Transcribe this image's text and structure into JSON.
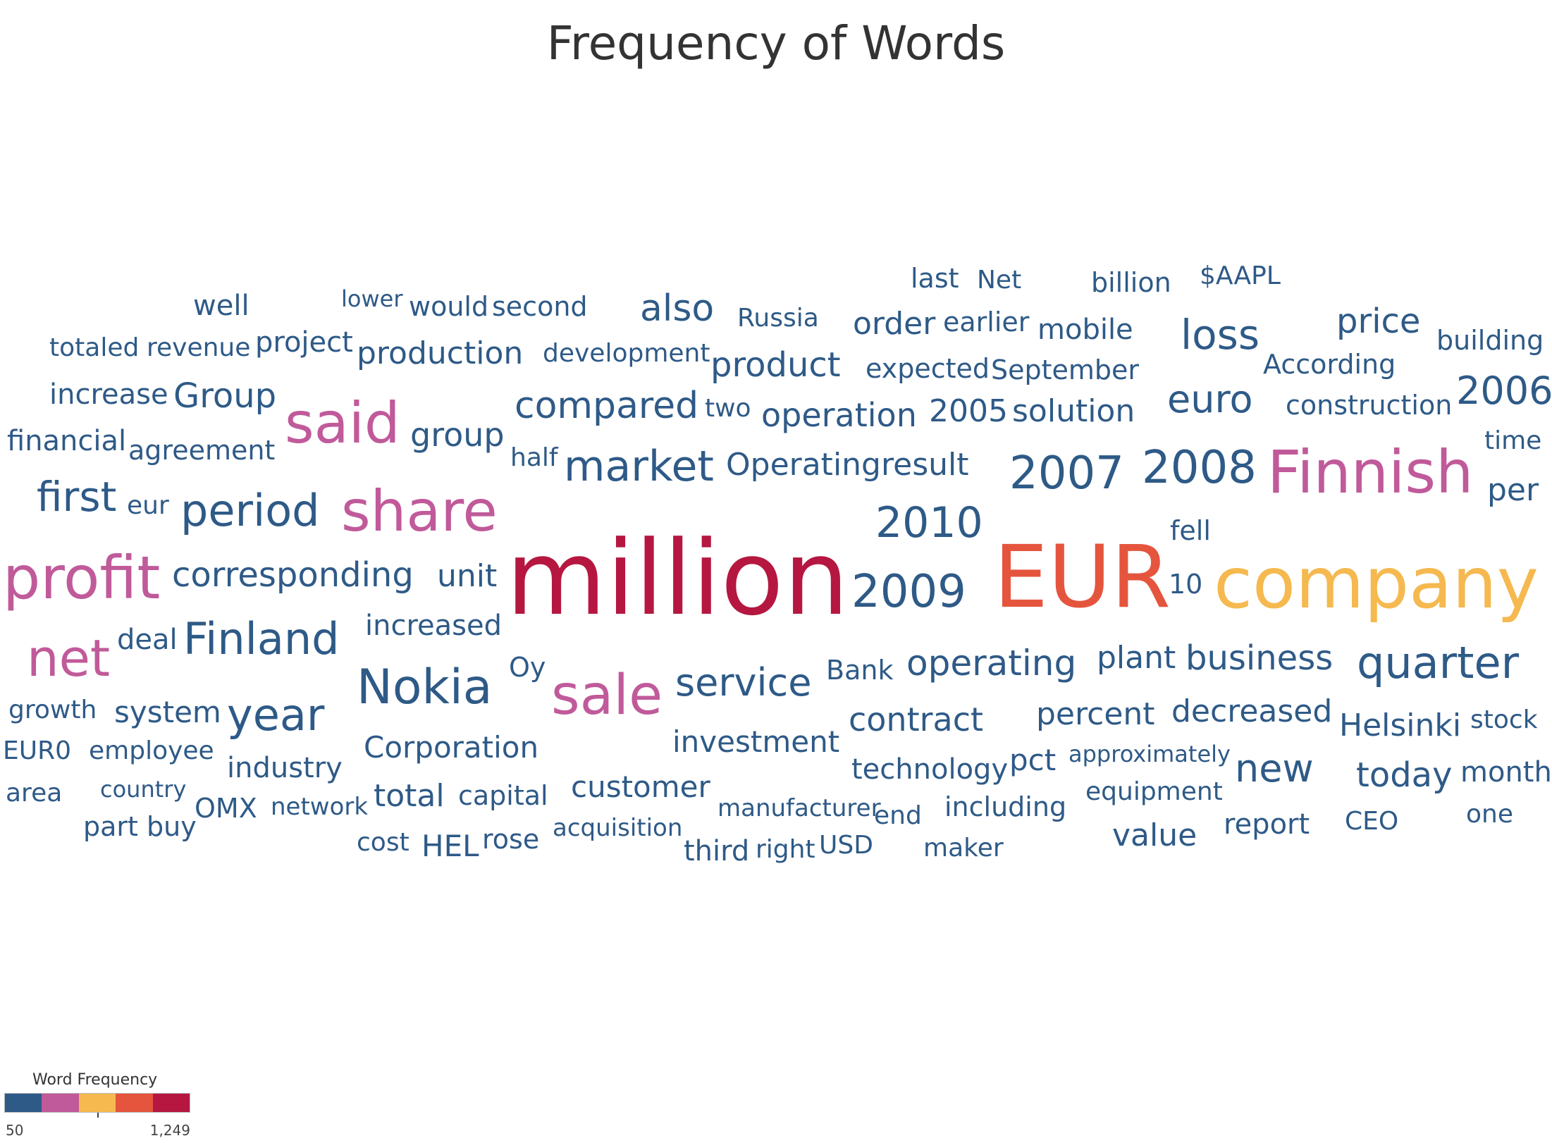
{
  "chart_data": {
    "type": "word-cloud",
    "title": "Frequency of Words",
    "legend": {
      "title": "Word Frequency",
      "min_label": "50",
      "max_label": "1,249",
      "palette": [
        "#2e5a87",
        "#c05a9a",
        "#f5b94f",
        "#e5553e",
        "#b51740"
      ]
    },
    "words": [
      {
        "text": "million",
        "color": "#b51740"
      },
      {
        "text": "EUR",
        "color": "#e5553e"
      },
      {
        "text": "company",
        "color": "#f5b94f"
      },
      {
        "text": "profit",
        "color": "#c05a9a"
      },
      {
        "text": "share",
        "color": "#c05a9a"
      },
      {
        "text": "Finnish",
        "color": "#c05a9a"
      },
      {
        "text": "said",
        "color": "#c05a9a"
      },
      {
        "text": "sale",
        "color": "#c05a9a"
      },
      {
        "text": "net",
        "color": "#c05a9a"
      },
      {
        "text": "2009",
        "color": "#2e5a87"
      },
      {
        "text": "2007",
        "color": "#2e5a87"
      },
      {
        "text": "2008",
        "color": "#2e5a87"
      },
      {
        "text": "2010",
        "color": "#2e5a87"
      },
      {
        "text": "Nokia",
        "color": "#2e5a87"
      },
      {
        "text": "market",
        "color": "#2e5a87"
      },
      {
        "text": "quarter",
        "color": "#2e5a87"
      },
      {
        "text": "period",
        "color": "#2e5a87"
      },
      {
        "text": "year",
        "color": "#2e5a87"
      },
      {
        "text": "Finland",
        "color": "#2e5a87"
      },
      {
        "text": "first",
        "color": "#2e5a87"
      },
      {
        "text": "service",
        "color": "#2e5a87"
      },
      {
        "text": "corresponding",
        "color": "#2e5a87"
      },
      {
        "text": "loss",
        "color": "#2e5a87"
      },
      {
        "text": "euro",
        "color": "#2e5a87"
      },
      {
        "text": "compared",
        "color": "#2e5a87"
      },
      {
        "text": "operating",
        "color": "#2e5a87"
      },
      {
        "text": "also",
        "color": "#2e5a87"
      },
      {
        "text": "2006",
        "color": "#2e5a87"
      },
      {
        "text": "business",
        "color": "#2e5a87"
      },
      {
        "text": "new",
        "color": "#2e5a87"
      },
      {
        "text": "Group",
        "color": "#2e5a87"
      },
      {
        "text": "price",
        "color": "#2e5a87"
      },
      {
        "text": "product",
        "color": "#2e5a87"
      },
      {
        "text": "today",
        "color": "#2e5a87"
      },
      {
        "text": "operation",
        "color": "#2e5a87"
      },
      {
        "text": "group",
        "color": "#2e5a87"
      },
      {
        "text": "production",
        "color": "#2e5a87"
      },
      {
        "text": "Operating",
        "color": "#2e5a87"
      },
      {
        "text": "result",
        "color": "#2e5a87"
      },
      {
        "text": "solution",
        "color": "#2e5a87"
      },
      {
        "text": "contract",
        "color": "#2e5a87"
      },
      {
        "text": "Helsinki",
        "color": "#2e5a87"
      },
      {
        "text": "decreased",
        "color": "#2e5a87"
      },
      {
        "text": "plant",
        "color": "#2e5a87"
      },
      {
        "text": "percent",
        "color": "#2e5a87"
      },
      {
        "text": "2005",
        "color": "#2e5a87"
      },
      {
        "text": "order",
        "color": "#2e5a87"
      },
      {
        "text": "unit",
        "color": "#2e5a87"
      },
      {
        "text": "total",
        "color": "#2e5a87"
      },
      {
        "text": "Corporation",
        "color": "#2e5a87"
      },
      {
        "text": "customer",
        "color": "#2e5a87"
      },
      {
        "text": "investment",
        "color": "#2e5a87"
      },
      {
        "text": "system",
        "color": "#2e5a87"
      },
      {
        "text": "technology",
        "color": "#2e5a87"
      },
      {
        "text": "industry",
        "color": "#2e5a87"
      },
      {
        "text": "increased",
        "color": "#2e5a87"
      },
      {
        "text": "value",
        "color": "#2e5a87"
      },
      {
        "text": "per",
        "color": "#2e5a87"
      },
      {
        "text": "pct",
        "color": "#2e5a87"
      },
      {
        "text": "HEL",
        "color": "#2e5a87"
      },
      {
        "text": "third",
        "color": "#2e5a87"
      },
      {
        "text": "report",
        "color": "#2e5a87"
      },
      {
        "text": "month",
        "color": "#2e5a87"
      },
      {
        "text": "mobile",
        "color": "#2e5a87"
      },
      {
        "text": "project",
        "color": "#2e5a87"
      },
      {
        "text": "deal",
        "color": "#2e5a87"
      },
      {
        "text": "increase",
        "color": "#2e5a87"
      },
      {
        "text": "financial",
        "color": "#2e5a87"
      },
      {
        "text": "agreement",
        "color": "#2e5a87"
      },
      {
        "text": "well",
        "color": "#2e5a87"
      },
      {
        "text": "would",
        "color": "#2e5a87"
      },
      {
        "text": "second",
        "color": "#2e5a87"
      },
      {
        "text": "capital",
        "color": "#2e5a87"
      },
      {
        "text": "Oy",
        "color": "#2e5a87"
      },
      {
        "text": "fell",
        "color": "#2e5a87"
      },
      {
        "text": "10",
        "color": "#2e5a87"
      },
      {
        "text": "Bank",
        "color": "#2e5a87"
      },
      {
        "text": "expected",
        "color": "#2e5a87"
      },
      {
        "text": "September",
        "color": "#2e5a87"
      },
      {
        "text": "earlier",
        "color": "#2e5a87"
      },
      {
        "text": "According",
        "color": "#2e5a87"
      },
      {
        "text": "building",
        "color": "#2e5a87"
      },
      {
        "text": "construction",
        "color": "#2e5a87"
      },
      {
        "text": "billion",
        "color": "#2e5a87"
      },
      {
        "text": "$AAPL",
        "color": "#2e5a87"
      },
      {
        "text": "last",
        "color": "#2e5a87"
      },
      {
        "text": "Net",
        "color": "#2e5a87"
      },
      {
        "text": "Russia",
        "color": "#2e5a87"
      },
      {
        "text": "development",
        "color": "#2e5a87"
      },
      {
        "text": "revenue",
        "color": "#2e5a87"
      },
      {
        "text": "totaled",
        "color": "#2e5a87"
      },
      {
        "text": "lower",
        "color": "#2e5a87"
      },
      {
        "text": "two",
        "color": "#2e5a87"
      },
      {
        "text": "half",
        "color": "#2e5a87"
      },
      {
        "text": "eur",
        "color": "#2e5a87"
      },
      {
        "text": "time",
        "color": "#2e5a87"
      },
      {
        "text": "growth",
        "color": "#2e5a87"
      },
      {
        "text": "EUR0",
        "color": "#2e5a87"
      },
      {
        "text": "employee",
        "color": "#2e5a87"
      },
      {
        "text": "area",
        "color": "#2e5a87"
      },
      {
        "text": "country",
        "color": "#2e5a87"
      },
      {
        "text": "part",
        "color": "#2e5a87"
      },
      {
        "text": "buy",
        "color": "#2e5a87"
      },
      {
        "text": "OMX",
        "color": "#2e5a87"
      },
      {
        "text": "network",
        "color": "#2e5a87"
      },
      {
        "text": "cost",
        "color": "#2e5a87"
      },
      {
        "text": "rose",
        "color": "#2e5a87"
      },
      {
        "text": "acquisition",
        "color": "#2e5a87"
      },
      {
        "text": "right",
        "color": "#2e5a87"
      },
      {
        "text": "USD",
        "color": "#2e5a87"
      },
      {
        "text": "manufacturer",
        "color": "#2e5a87"
      },
      {
        "text": "end",
        "color": "#2e5a87"
      },
      {
        "text": "including",
        "color": "#2e5a87"
      },
      {
        "text": "maker",
        "color": "#2e5a87"
      },
      {
        "text": "approximately",
        "color": "#2e5a87"
      },
      {
        "text": "equipment",
        "color": "#2e5a87"
      },
      {
        "text": "stock",
        "color": "#2e5a87"
      },
      {
        "text": "CEO",
        "color": "#2e5a87"
      },
      {
        "text": "one",
        "color": "#2e5a87"
      }
    ]
  }
}
